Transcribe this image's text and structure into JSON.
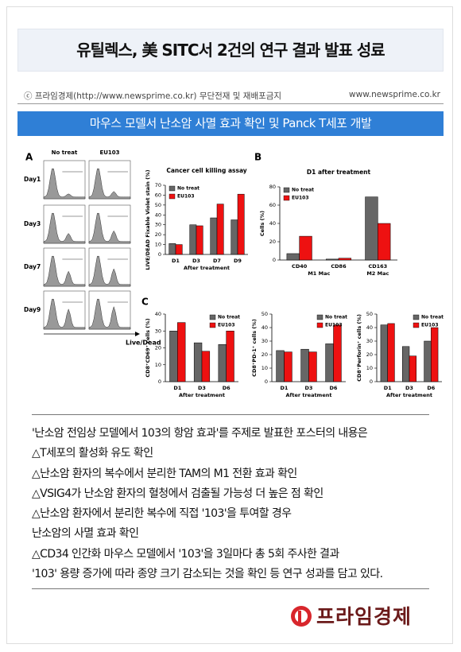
{
  "header": {
    "title": "유틸렉스, 美 SITC서 2건의 연구 결과 발표 성료"
  },
  "source": {
    "copyright": "ⓒ 프라임경제(http://www.newsprime.co.kr) 무단전재 및 재배포금지",
    "site": "www.newsprime.co.kr"
  },
  "banner": "마우스 모델서 난소암 사멸 효과 확인 및 Panck T세포 개발",
  "figure": {
    "panels": [
      "A",
      "B",
      "C"
    ],
    "columns": [
      "No treat",
      "EU103"
    ],
    "rows": [
      "Day1",
      "Day3",
      "Day7",
      "Day9"
    ],
    "axis_label": "Live/Dead"
  },
  "chart_data": [
    {
      "type": "bar",
      "title": "Cancer cell killing assay",
      "ylabel": "LIVE/DEAD Fixable Violet stain (%)",
      "xlabel": "After treatment",
      "categories": [
        "D1",
        "D3",
        "D7",
        "D9"
      ],
      "series": [
        {
          "name": "No treat",
          "color": "#666666",
          "values": [
            11,
            30,
            37,
            35
          ]
        },
        {
          "name": "EU103",
          "color": "#ee1111",
          "values": [
            10,
            29,
            51,
            61
          ]
        }
      ],
      "ylim": [
        0,
        70
      ],
      "yticks": [
        0,
        10,
        20,
        30,
        40,
        50,
        60,
        70
      ],
      "legend": "upper left"
    },
    {
      "type": "bar",
      "title": "D1 after treatment",
      "ylabel": "Cells (%)",
      "group_labels": [
        "M1 Mac",
        "M2 Mac"
      ],
      "categories": [
        "CD40",
        "CD86",
        "CD163"
      ],
      "series": [
        {
          "name": "No treat",
          "color": "#666666",
          "values": [
            7,
            1,
            69
          ]
        },
        {
          "name": "EU103",
          "color": "#ee1111",
          "values": [
            26,
            2,
            40
          ]
        }
      ],
      "ylim": [
        0,
        80
      ],
      "yticks": [
        0,
        20,
        40,
        60,
        80
      ],
      "legend": "upper left"
    },
    {
      "type": "bar",
      "ylabel": "CD8⁺CD69⁺ cells (%)",
      "xlabel": "After treatment",
      "categories": [
        "D1",
        "D3",
        "D6"
      ],
      "series": [
        {
          "name": "No treat",
          "color": "#666666",
          "values": [
            30,
            23,
            22
          ]
        },
        {
          "name": "EU103",
          "color": "#ee1111",
          "values": [
            35,
            18,
            30
          ]
        }
      ],
      "ylim": [
        0,
        40
      ],
      "yticks": [
        0,
        10,
        20,
        30,
        40
      ],
      "legend": "upper right"
    },
    {
      "type": "bar",
      "ylabel": "CD8⁺PD-1⁺ cells (%)",
      "xlabel": "After treatment",
      "categories": [
        "D1",
        "D3",
        "D6"
      ],
      "series": [
        {
          "name": "No treat",
          "color": "#666666",
          "values": [
            23,
            24,
            28
          ]
        },
        {
          "name": "EU103",
          "color": "#ee1111",
          "values": [
            22,
            22,
            42
          ]
        }
      ],
      "ylim": [
        0,
        50
      ],
      "yticks": [
        0,
        10,
        20,
        30,
        40,
        50
      ],
      "legend": "upper right"
    },
    {
      "type": "bar",
      "ylabel": "CD8⁺Perforin⁺ cells (%)",
      "xlabel": "After treatment",
      "categories": [
        "D1",
        "D3",
        "D6"
      ],
      "series": [
        {
          "name": "No treat",
          "color": "#666666",
          "values": [
            42,
            26,
            30
          ]
        },
        {
          "name": "EU103",
          "color": "#ee1111",
          "values": [
            43,
            19,
            40
          ]
        }
      ],
      "ylim": [
        0,
        50
      ],
      "yticks": [
        0,
        10,
        20,
        30,
        40,
        50
      ],
      "legend": "upper right"
    }
  ],
  "body": {
    "lines": [
      "'난소암 전임상 모델에서 103의 항암 효과'를 주제로 발표한 포스터의 내용은",
      "△T세포의 활성화 유도 확인",
      "△난소암 환자의 복수에서 분리한 TAM의 M1 전환 효과 확인",
      "△VSIG4가 난소암 환자의 혈청에서 검출될 가능성 더 높은 점 확인",
      "△난소암 환자에서 분리한 복수에 직접 '103'을 투여할 경우",
      "난소암의 사멸 효과 확인",
      "△CD34 인간화 마우스 모델에서 '103'을 3일마다 총 5회 주사한 결과",
      "'103' 용량 증가에 따라 종양 크기 감소되는 것을 확인 등 연구 성과를 담고 있다."
    ]
  },
  "logo": "프라임경제"
}
